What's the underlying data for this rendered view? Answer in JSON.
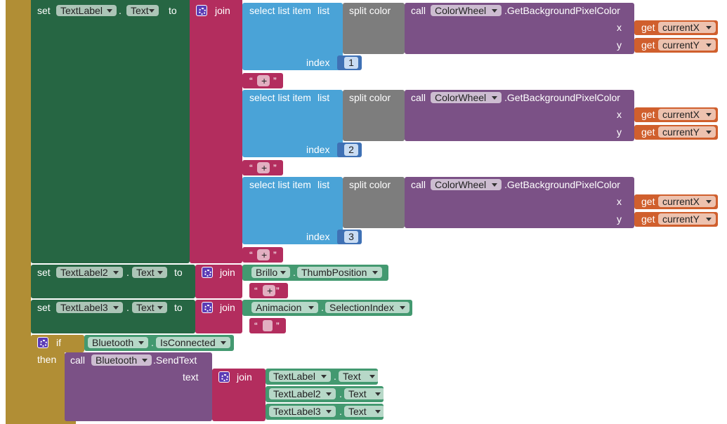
{
  "dot": ".",
  "open_quote": "“",
  "close_quote": "”",
  "set1": {
    "set": "set",
    "component": "TextLabel",
    "property": "Text",
    "to": "to",
    "join": "join",
    "parts": [
      {
        "select": "select list item",
        "list": "list",
        "index_label": "index",
        "index": 1,
        "split": "split color",
        "call": "call",
        "component": "ColorWheel",
        "method": ".GetBackgroundPixelColor",
        "x": "x",
        "y": "y",
        "get_x": "get",
        "var_x": "currentX",
        "get_y": "get",
        "var_y": "currentY",
        "separator": "+"
      },
      {
        "select": "select list item",
        "list": "list",
        "index_label": "index",
        "index": 2,
        "split": "split color",
        "call": "call",
        "component": "ColorWheel",
        "method": ".GetBackgroundPixelColor",
        "x": "x",
        "y": "y",
        "get_x": "get",
        "var_x": "currentX",
        "get_y": "get",
        "var_y": "currentY",
        "separator": "+"
      },
      {
        "select": "select list item",
        "list": "list",
        "index_label": "index",
        "index": 3,
        "split": "split color",
        "call": "call",
        "component": "ColorWheel",
        "method": ".GetBackgroundPixelColor",
        "x": "x",
        "y": "y",
        "get_x": "get",
        "var_x": "currentX",
        "get_y": "get",
        "var_y": "currentY",
        "separator": "+"
      }
    ]
  },
  "set2": {
    "set": "set",
    "component": "TextLabel2",
    "property": "Text",
    "to": "to",
    "join": "join",
    "source": "Brillo",
    "source_property": "ThumbPosition",
    "separator": "+"
  },
  "set3": {
    "set": "set",
    "component": "TextLabel3",
    "property": "Text",
    "to": "to",
    "join": "join",
    "source": "Animacion",
    "source_property": "SelectionIndex"
  },
  "if_block": {
    "if": "if",
    "then": "then",
    "component": "Bluetooth",
    "property": "IsConnected",
    "call": "call",
    "target": "Bluetooth",
    "method": ".SendText",
    "text": "text",
    "join": "join",
    "items": [
      {
        "component": "TextLabel",
        "property": "Text"
      },
      {
        "component": "TextLabel2",
        "property": "Text"
      },
      {
        "component": "TextLabel3",
        "property": "Text"
      }
    ]
  }
}
